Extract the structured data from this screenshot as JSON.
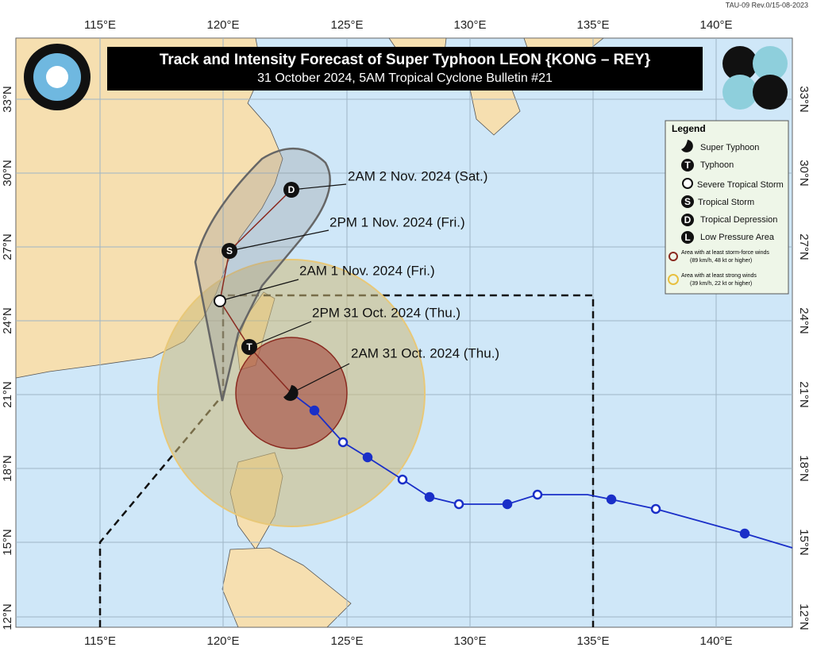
{
  "header": {
    "revision": "TAU-09 Rev.0/15-08-2023",
    "title": "Track and Intensity Forecast of Super Typhoon LEON {KONG – REY}",
    "subtitle": "31 October 2024, 5AM Tropical Cyclone Bulletin #21"
  },
  "map": {
    "longitude_labels": [
      "115°E",
      "120°E",
      "125°E",
      "130°E",
      "135°E",
      "140°E"
    ],
    "latitude_labels": [
      "33°N",
      "30°N",
      "27°N",
      "24°N",
      "21°N",
      "18°N",
      "15°N",
      "12°N"
    ]
  },
  "forecast_points": [
    {
      "label": "2AM 31 Oct. 2024 (Thu.)"
    },
    {
      "symbol": "T",
      "label": "2PM 31 Oct. 2024 (Thu.)"
    },
    {
      "label": "2AM 1 Nov. 2024 (Fri.)"
    },
    {
      "symbol": "S",
      "label": "2PM 1 Nov. 2024 (Fri.)"
    },
    {
      "symbol": "D",
      "label": "2AM 2 Nov. 2024 (Sat.)"
    }
  ],
  "legend": {
    "title": "Legend",
    "items": [
      {
        "label": "Super Typhoon"
      },
      {
        "symbol": "T",
        "label": "Typhoon"
      },
      {
        "label": "Severe Tropical Storm"
      },
      {
        "symbol": "S",
        "label": "Tropical Storm"
      },
      {
        "symbol": "D",
        "label": "Tropical Depression"
      },
      {
        "symbol": "L",
        "label": "Low Pressure Area"
      }
    ],
    "wind_areas": [
      {
        "label": "Area with at least storm-force winds",
        "detail": "(89 km/h, 48 kt or higher)"
      },
      {
        "label": "Area with at least strong winds",
        "detail": "(39 km/h, 22 kt or higher)"
      }
    ]
  }
}
